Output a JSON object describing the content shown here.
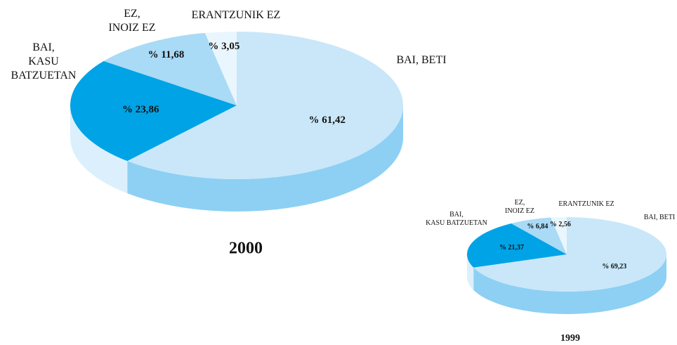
{
  "chart_data": [
    {
      "type": "pie",
      "title": "2000",
      "categories": [
        "BAI, BETI",
        "BAI,\nKASU\nBATZUETAN",
        "EZ,\nINOIZ EZ",
        "ERANTZUNIK EZ"
      ],
      "values": [
        61.42,
        23.86,
        11.68,
        3.05
      ],
      "value_labels": [
        "% 61,42",
        "% 23,86",
        "% 11,68",
        "% 3,05"
      ],
      "colors": [
        "#c9e7f9",
        "#00a3e6",
        "#a9daf6",
        "#eaf6fd"
      ],
      "side_colors": [
        "#8dd0f3",
        "#dbf0fc",
        "#a9daf6",
        "#eaf6fd"
      ]
    },
    {
      "type": "pie",
      "title": "1999",
      "categories": [
        "BAI, BETI",
        "BAI,\nKASU BATZUETAN",
        "EZ,\nINOIZ EZ",
        "ERANTZUNIK EZ"
      ],
      "values": [
        69.23,
        21.37,
        6.84,
        2.56
      ],
      "value_labels": [
        "% 69,23",
        "% 21,37",
        "% 6,84",
        "% 2,56"
      ],
      "colors": [
        "#c9e7f9",
        "#00a3e6",
        "#a9daf6",
        "#eaf6fd"
      ],
      "side_colors": [
        "#8dd0f3",
        "#dbf0fc",
        "#a9daf6",
        "#eaf6fd"
      ]
    }
  ]
}
